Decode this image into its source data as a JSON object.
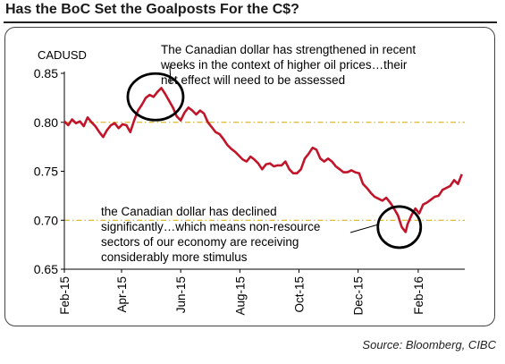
{
  "title": "Has the BoC Set the Goalposts For the C$?",
  "source": "Source: Bloomberg, CIBC",
  "colors": {
    "line": "#c0152a",
    "reference": "#d4a800",
    "circle": "#000000"
  },
  "chart_data": {
    "type": "line",
    "ylabel": "CADUSD",
    "ylim": [
      0.65,
      0.85
    ],
    "yticks": [
      0.85,
      0.8,
      0.75,
      0.7,
      0.65
    ],
    "ytick_labels": [
      "0.85",
      "0.80",
      "0.75",
      "0.70",
      "0.65"
    ],
    "reference_lines": [
      0.8,
      0.7
    ],
    "x_range": [
      "2015-02-01",
      "2016-03-20"
    ],
    "xticks": [
      {
        "date": "2015-02-01",
        "label": "Feb-15"
      },
      {
        "date": "2015-04-01",
        "label": "Apr-15"
      },
      {
        "date": "2015-06-01",
        "label": "Jun-15"
      },
      {
        "date": "2015-08-01",
        "label": "Aug-15"
      },
      {
        "date": "2015-10-01",
        "label": "Oct-15"
      },
      {
        "date": "2015-12-01",
        "label": "Dec-15"
      },
      {
        "date": "2016-02-01",
        "label": "Feb-16"
      }
    ],
    "series": [
      {
        "name": "",
        "points": [
          [
            "2015-02-01",
            0.801
          ],
          [
            "2015-02-05",
            0.797
          ],
          [
            "2015-02-09",
            0.803
          ],
          [
            "2015-02-13",
            0.799
          ],
          [
            "2015-02-17",
            0.801
          ],
          [
            "2015-02-21",
            0.796
          ],
          [
            "2015-02-25",
            0.805
          ],
          [
            "2015-03-01",
            0.8
          ],
          [
            "2015-03-05",
            0.796
          ],
          [
            "2015-03-09",
            0.79
          ],
          [
            "2015-03-13",
            0.785
          ],
          [
            "2015-03-17",
            0.792
          ],
          [
            "2015-03-21",
            0.797
          ],
          [
            "2015-03-25",
            0.799
          ],
          [
            "2015-03-29",
            0.794
          ],
          [
            "2015-04-02",
            0.798
          ],
          [
            "2015-04-06",
            0.797
          ],
          [
            "2015-04-10",
            0.79
          ],
          [
            "2015-04-14",
            0.802
          ],
          [
            "2015-04-18",
            0.812
          ],
          [
            "2015-04-22",
            0.818
          ],
          [
            "2015-04-26",
            0.825
          ],
          [
            "2015-04-30",
            0.828
          ],
          [
            "2015-05-04",
            0.826
          ],
          [
            "2015-05-08",
            0.831
          ],
          [
            "2015-05-12",
            0.835
          ],
          [
            "2015-05-16",
            0.829
          ],
          [
            "2015-05-20",
            0.822
          ],
          [
            "2015-05-24",
            0.815
          ],
          [
            "2015-05-28",
            0.806
          ],
          [
            "2015-06-01",
            0.802
          ],
          [
            "2015-06-05",
            0.81
          ],
          [
            "2015-06-09",
            0.815
          ],
          [
            "2015-06-13",
            0.812
          ],
          [
            "2015-06-17",
            0.808
          ],
          [
            "2015-06-21",
            0.812
          ],
          [
            "2015-06-25",
            0.809
          ],
          [
            "2015-06-29",
            0.8
          ],
          [
            "2015-07-03",
            0.795
          ],
          [
            "2015-07-07",
            0.79
          ],
          [
            "2015-07-11",
            0.788
          ],
          [
            "2015-07-15",
            0.783
          ],
          [
            "2015-07-19",
            0.777
          ],
          [
            "2015-07-23",
            0.773
          ],
          [
            "2015-07-27",
            0.77
          ],
          [
            "2015-07-31",
            0.766
          ],
          [
            "2015-08-04",
            0.762
          ],
          [
            "2015-08-08",
            0.76
          ],
          [
            "2015-08-12",
            0.765
          ],
          [
            "2015-08-16",
            0.762
          ],
          [
            "2015-08-20",
            0.758
          ],
          [
            "2015-08-24",
            0.752
          ],
          [
            "2015-08-28",
            0.757
          ],
          [
            "2015-09-01",
            0.758
          ],
          [
            "2015-09-05",
            0.755
          ],
          [
            "2015-09-09",
            0.756
          ],
          [
            "2015-09-13",
            0.756
          ],
          [
            "2015-09-17",
            0.76
          ],
          [
            "2015-09-21",
            0.752
          ],
          [
            "2015-09-25",
            0.748
          ],
          [
            "2015-09-29",
            0.748
          ],
          [
            "2015-10-03",
            0.752
          ],
          [
            "2015-10-07",
            0.763
          ],
          [
            "2015-10-11",
            0.768
          ],
          [
            "2015-10-15",
            0.774
          ],
          [
            "2015-10-19",
            0.772
          ],
          [
            "2015-10-23",
            0.763
          ],
          [
            "2015-10-27",
            0.76
          ],
          [
            "2015-10-31",
            0.763
          ],
          [
            "2015-11-04",
            0.76
          ],
          [
            "2015-11-08",
            0.755
          ],
          [
            "2015-11-12",
            0.752
          ],
          [
            "2015-11-16",
            0.749
          ],
          [
            "2015-11-20",
            0.749
          ],
          [
            "2015-11-24",
            0.751
          ],
          [
            "2015-11-28",
            0.749
          ],
          [
            "2015-12-02",
            0.748
          ],
          [
            "2015-12-06",
            0.737
          ],
          [
            "2015-12-10",
            0.733
          ],
          [
            "2015-12-14",
            0.728
          ],
          [
            "2015-12-18",
            0.724
          ],
          [
            "2015-12-22",
            0.722
          ],
          [
            "2015-12-26",
            0.72
          ],
          [
            "2015-12-30",
            0.723
          ],
          [
            "2016-01-03",
            0.718
          ],
          [
            "2016-01-07",
            0.712
          ],
          [
            "2016-01-11",
            0.705
          ],
          [
            "2016-01-15",
            0.693
          ],
          [
            "2016-01-19",
            0.688
          ],
          [
            "2016-01-21",
            0.696
          ],
          [
            "2016-01-25",
            0.705
          ],
          [
            "2016-01-29",
            0.712
          ],
          [
            "2016-02-02",
            0.707
          ],
          [
            "2016-02-06",
            0.716
          ],
          [
            "2016-02-10",
            0.718
          ],
          [
            "2016-02-14",
            0.721
          ],
          [
            "2016-02-18",
            0.724
          ],
          [
            "2016-02-22",
            0.725
          ],
          [
            "2016-02-26",
            0.731
          ],
          [
            "2016-03-01",
            0.733
          ],
          [
            "2016-03-05",
            0.735
          ],
          [
            "2016-03-09",
            0.741
          ],
          [
            "2016-03-13",
            0.737
          ],
          [
            "2016-03-17",
            0.747
          ]
        ]
      }
    ],
    "annotations": [
      {
        "lines": [
          "The Canadian dollar has strengthened in recent",
          "weeks in the context of higher oil prices…their",
          "net effect will need to be assessed"
        ],
        "circle_center": [
          "2015-05-06",
          0.826
        ]
      },
      {
        "lines": [
          "the Canadian dollar has declined",
          "significantly…which means non-resource",
          "sectors of our economy are receiving",
          "considerably more stimulus"
        ],
        "circle_center": [
          "2016-01-18",
          0.693
        ]
      }
    ]
  }
}
